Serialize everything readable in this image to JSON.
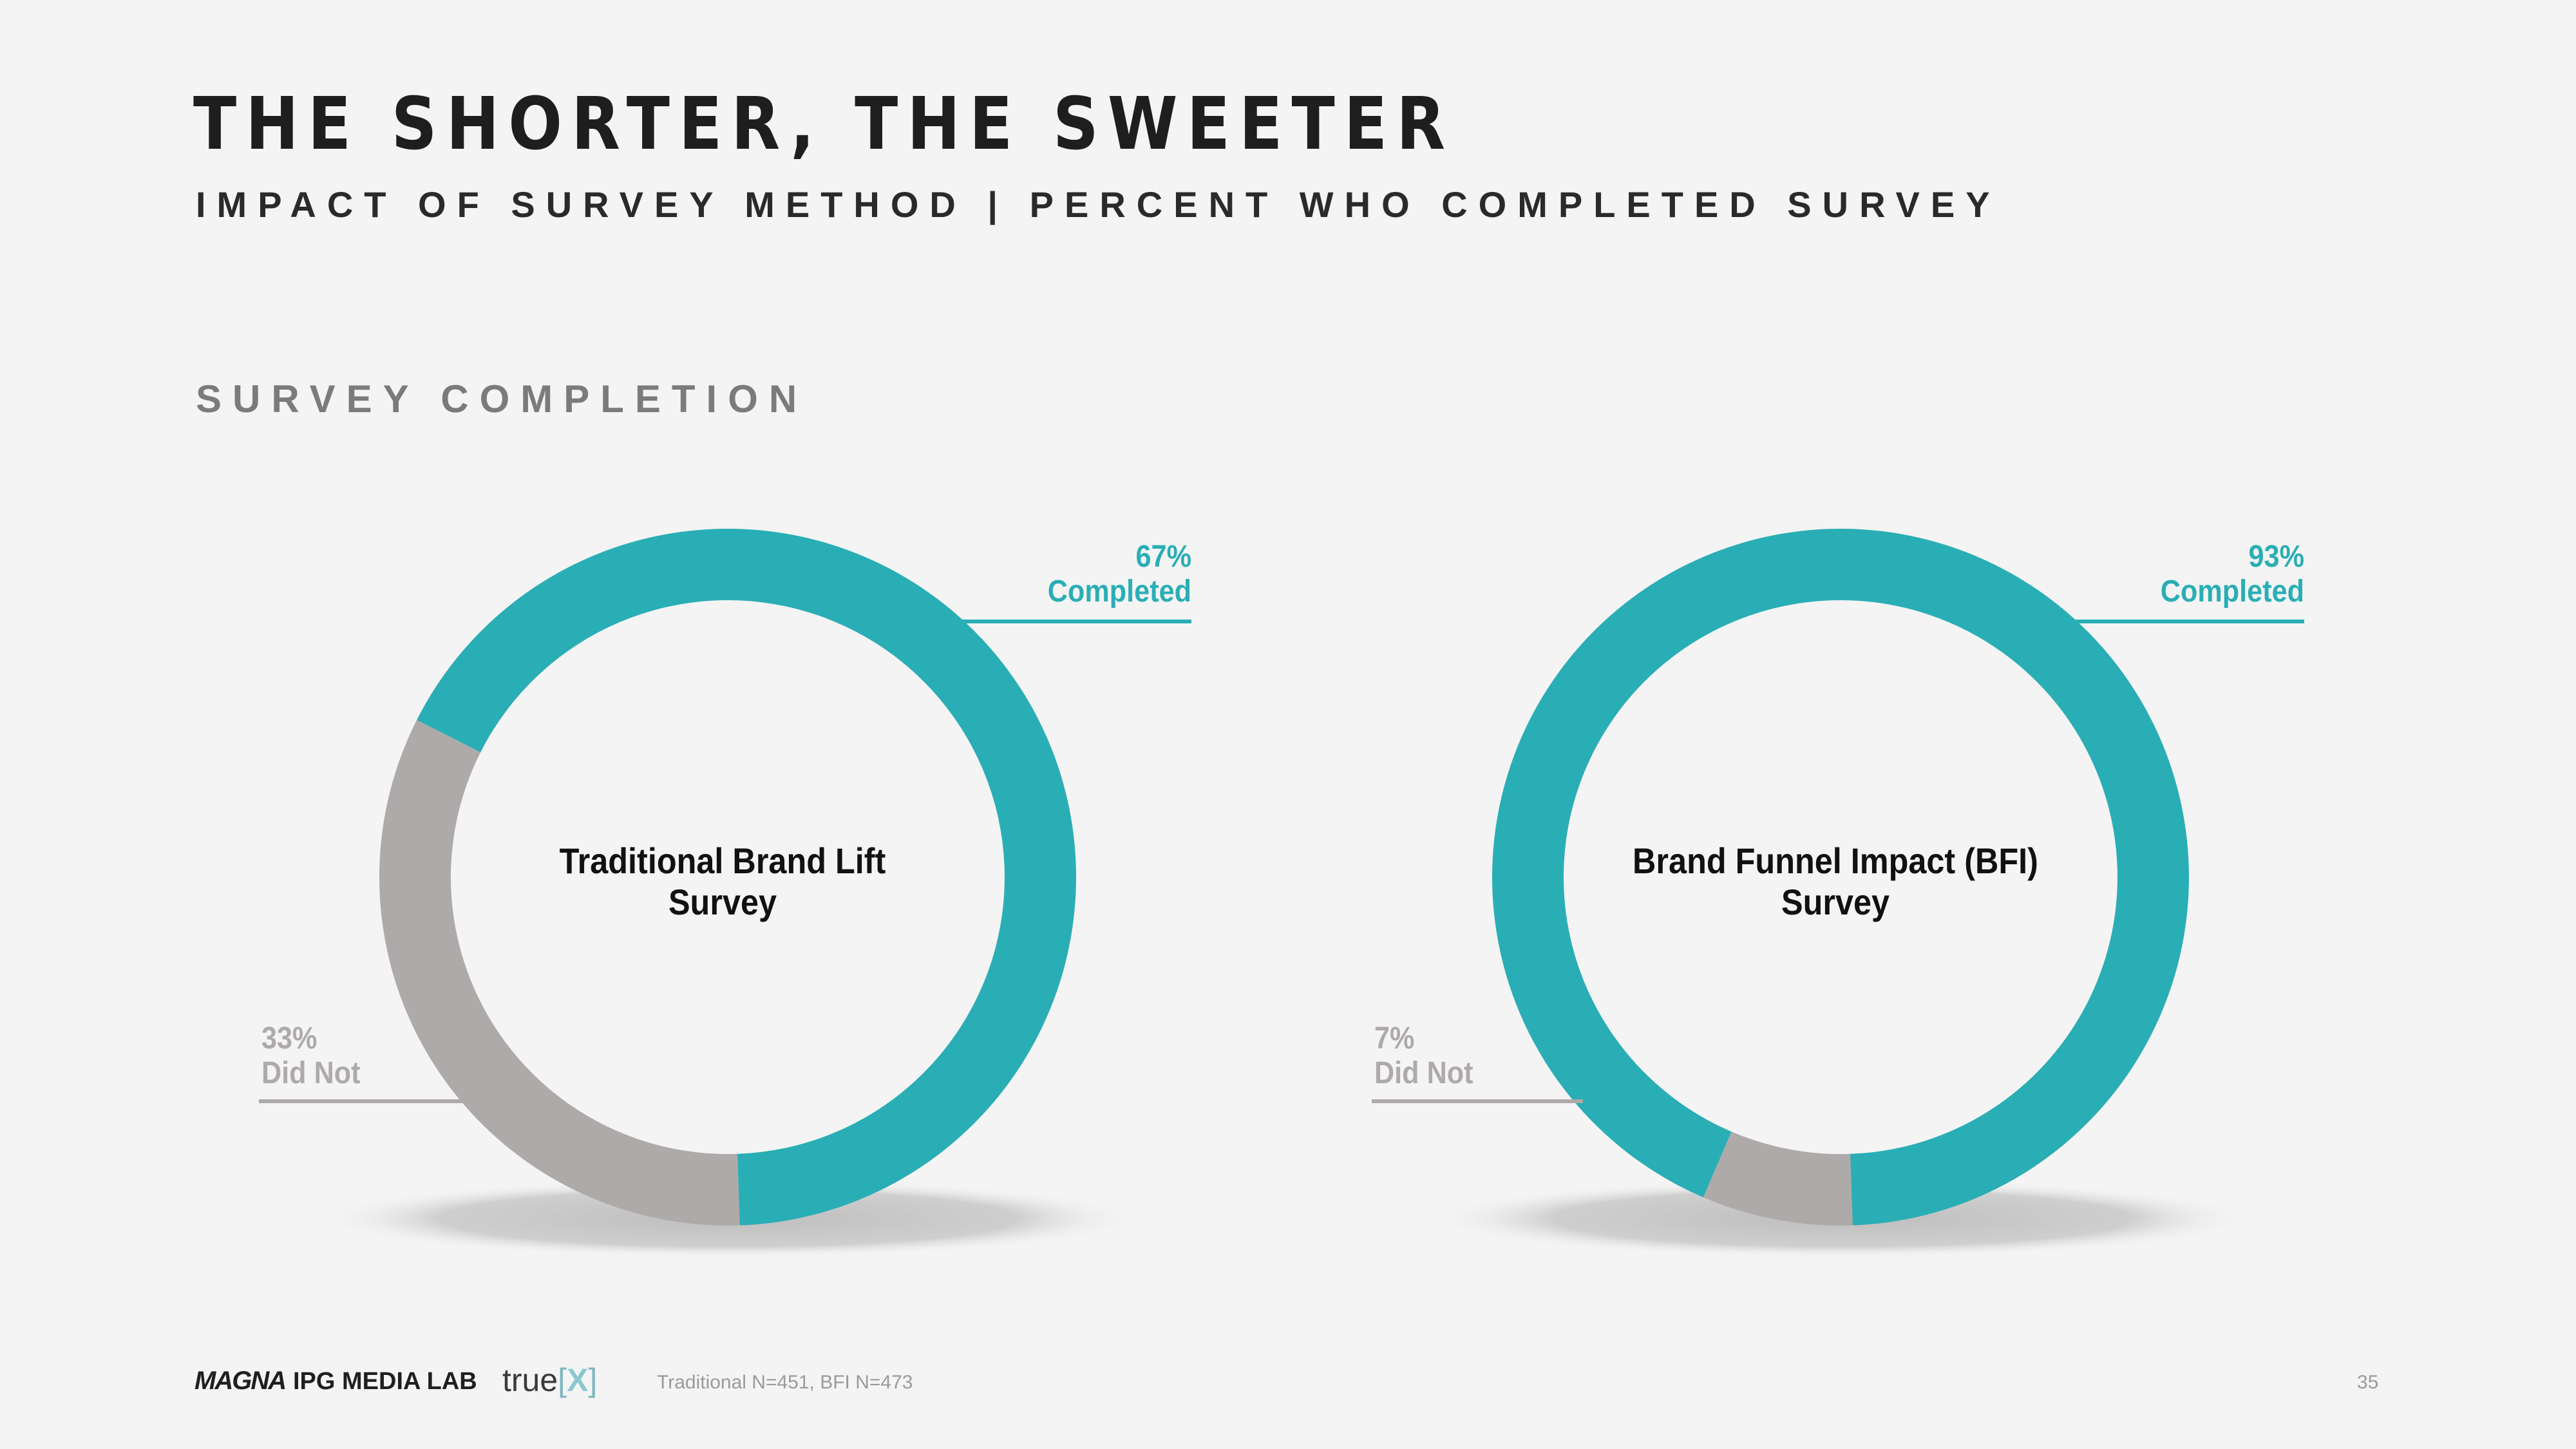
{
  "title": "THE SHORTER, THE SWEETER",
  "subtitle": "IMPACT OF SURVEY METHOD | PERCENT WHO COMPLETED SURVEY",
  "section_label": "SURVEY COMPLETION",
  "colors": {
    "completed": "#2aaeb5",
    "did_not": "#aeaaa9",
    "shadow": "#c8c8c8"
  },
  "chart_data": [
    {
      "type": "pie",
      "center_label": [
        "Traditional Brand Lift",
        "Survey"
      ],
      "slices": [
        {
          "value_label": "67%",
          "label": "Completed",
          "value": 67
        },
        {
          "value_label": "33%",
          "label": "Did Not",
          "value": 33
        }
      ]
    },
    {
      "type": "pie",
      "center_label": [
        "Brand Funnel Impact (BFI)",
        "Survey"
      ],
      "slices": [
        {
          "value_label": "93%",
          "label": "Completed",
          "value": 93
        },
        {
          "value_label": "7%",
          "label": "Did Not",
          "value": 7
        }
      ]
    }
  ],
  "footer": {
    "logo_magna": "MAGNA",
    "logo_ipg": "IPG MEDIA LAB",
    "logo_truex_text": "true",
    "logo_truex_mark": "X",
    "note": "Traditional N=451, BFI N=473",
    "page_number": "35"
  }
}
